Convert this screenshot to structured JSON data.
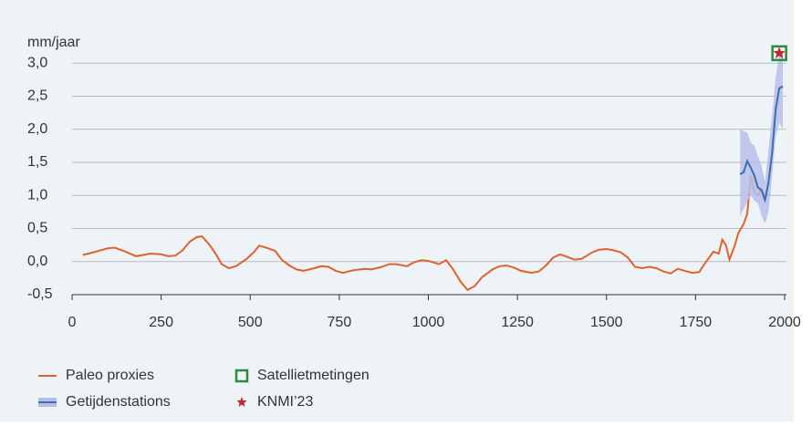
{
  "chart_data": {
    "type": "line",
    "y_label": "mm/jaar",
    "xlim": [
      0,
      2000
    ],
    "xticks": [
      0,
      250,
      500,
      750,
      1000,
      1250,
      1500,
      1750,
      2000
    ],
    "ylim": [
      -0.5,
      3.0
    ],
    "yticks": [
      {
        "value": -0.5,
        "label": "-0,5"
      },
      {
        "value": 0,
        "label": "0,0"
      },
      {
        "value": 0.5,
        "label": "0,5"
      },
      {
        "value": 1.0,
        "label": "1,0"
      },
      {
        "value": 1.5,
        "label": "1,5"
      },
      {
        "value": 2.0,
        "label": "2,0"
      },
      {
        "value": 2.5,
        "label": "2,5"
      },
      {
        "value": 3.0,
        "label": "3,0"
      }
    ],
    "grid": true,
    "legend": "bottom-left",
    "series": [
      {
        "name": "Paleo proxies",
        "color": "#e0622a",
        "x": [
          30,
          60,
          100,
          120,
          150,
          180,
          220,
          250,
          270,
          290,
          310,
          330,
          350,
          365,
          385,
          405,
          420,
          440,
          460,
          490,
          510,
          525,
          550,
          570,
          590,
          610,
          630,
          650,
          680,
          700,
          720,
          740,
          760,
          790,
          820,
          840,
          870,
          890,
          910,
          940,
          960,
          980,
          1000,
          1030,
          1050,
          1070,
          1090,
          1110,
          1130,
          1150,
          1180,
          1200,
          1220,
          1240,
          1260,
          1290,
          1310,
          1330,
          1350,
          1370,
          1390,
          1410,
          1430,
          1460,
          1480,
          1500,
          1520,
          1540,
          1560,
          1580,
          1600,
          1620,
          1640,
          1660,
          1680,
          1700,
          1720,
          1740,
          1760,
          1780,
          1800,
          1815,
          1825,
          1835,
          1845,
          1860,
          1870,
          1885,
          1895,
          1905,
          1915,
          1925,
          1935,
          1945,
          1960
        ],
        "values": [
          0.1,
          0.14,
          0.2,
          0.21,
          0.15,
          0.08,
          0.12,
          0.11,
          0.08,
          0.09,
          0.17,
          0.3,
          0.37,
          0.38,
          0.26,
          0.1,
          -0.04,
          -0.1,
          -0.07,
          0.04,
          0.14,
          0.24,
          0.2,
          0.16,
          0.02,
          -0.06,
          -0.12,
          -0.14,
          -0.1,
          -0.07,
          -0.08,
          -0.14,
          -0.17,
          -0.13,
          -0.11,
          -0.12,
          -0.08,
          -0.04,
          -0.04,
          -0.07,
          -0.01,
          0.02,
          0.01,
          -0.04,
          0.02,
          -0.12,
          -0.3,
          -0.43,
          -0.37,
          -0.24,
          -0.12,
          -0.07,
          -0.06,
          -0.09,
          -0.14,
          -0.17,
          -0.15,
          -0.06,
          0.06,
          0.11,
          0.07,
          0.03,
          0.04,
          0.14,
          0.18,
          0.19,
          0.17,
          0.14,
          0.06,
          -0.08,
          -0.1,
          -0.08,
          -0.1,
          -0.15,
          -0.18,
          -0.11,
          -0.14,
          -0.17,
          -0.16,
          0,
          0.15,
          0.12,
          0.33,
          0.25,
          0.03,
          0.24,
          0.43,
          0.57,
          0.72,
          1.3,
          1.05,
          1.0,
          1.1,
          1.0,
          1.02
        ]
      },
      {
        "name": "Getijdenstations",
        "color": "#3a6fb5",
        "band_color": "#b9bee8",
        "x": [
          1875,
          1885,
          1895,
          1905,
          1915,
          1925,
          1935,
          1945,
          1955,
          1965,
          1975,
          1985,
          1995
        ],
        "values": [
          1.32,
          1.35,
          1.52,
          1.42,
          1.3,
          1.12,
          1.08,
          0.93,
          1.2,
          1.65,
          2.3,
          2.62,
          2.65
        ],
        "lower": [
          0.68,
          0.8,
          0.9,
          1.0,
          0.92,
          0.88,
          0.7,
          0.57,
          0.75,
          1.3,
          1.9,
          2.1,
          2.0
        ],
        "upper": [
          2.0,
          1.97,
          1.95,
          1.8,
          1.75,
          1.6,
          1.45,
          1.2,
          1.7,
          2.2,
          2.8,
          3.1,
          3.2
        ]
      },
      {
        "name": "Satellietmetingen",
        "color": "#2e8b3e",
        "marker": "square",
        "x": [
          1985
        ],
        "values": [
          3.15
        ]
      },
      {
        "name": "KNMI’23",
        "color": "#c0282d",
        "marker": "star",
        "x": [
          1985
        ],
        "values": [
          3.15
        ]
      }
    ]
  }
}
